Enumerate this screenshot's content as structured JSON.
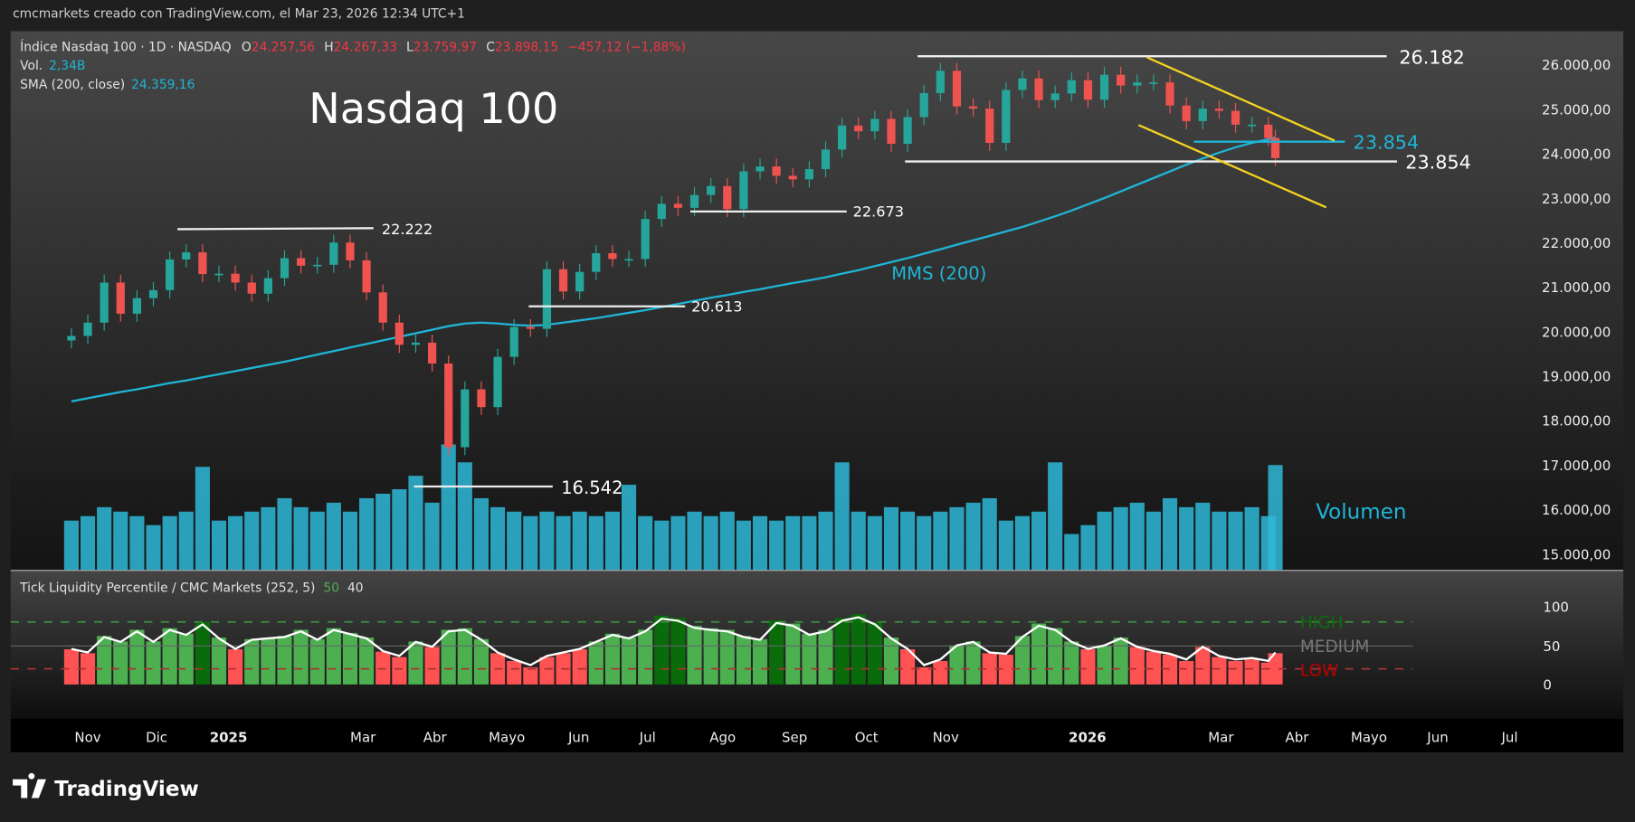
{
  "attribution": "cmcmarkets creado con TradingView.com, el Mar 23, 2026 12:34 UTC+1",
  "legend": {
    "symbol": "Índice Nasdaq 100 · 1D · NASDAQ",
    "o_label": "O",
    "o": "24.257,56",
    "h_label": "H",
    "h": "24.267,33",
    "l_label": "L",
    "l": "23.759,97",
    "c_label": "C",
    "c": "23.898,15",
    "change": "−457,12 (−1,88%)",
    "vol_label": "Vol.",
    "vol": "2,34B",
    "sma_label": "SMA (200, close)",
    "sma": "24.359,16"
  },
  "title_overlay": "Nasdaq 100",
  "annotations": {
    "mms": "MMS (200)",
    "volumen": "Volumen",
    "levels": [
      "26.182",
      "23.854",
      "23.854",
      "22.673",
      "22.222",
      "20.613",
      "16.542"
    ]
  },
  "indicator": {
    "title": "Tick Liquidity Percentile / CMC Markets (252, 5)",
    "v1": "50",
    "v2": "40",
    "high": "HIGH",
    "medium": "MEDIUM",
    "low": "LOW",
    "ticks": [
      "100",
      "50",
      "0"
    ]
  },
  "logo": "TradingView",
  "colors": {
    "up": "#26a69a",
    "down": "#ef5350",
    "sma": "#1fb5d6",
    "volume": "#2fb8d8",
    "trend": "#f5d321",
    "high": "#4caf50",
    "low": "#ff5252"
  },
  "chart_data": {
    "type": "candlestick",
    "price_axis_ticks": [
      "26.000,00",
      "25.000,00",
      "24.000,00",
      "23.000,00",
      "22.000,00",
      "21.000,00",
      "20.000,00",
      "19.000,00",
      "18.000,00",
      "17.000,00",
      "16.000,00",
      "15.000,00"
    ],
    "ylim": [
      15000,
      26500
    ],
    "time_ticks": [
      "Nov",
      "Dic",
      "2025",
      "Mar",
      "Abr",
      "Mayo",
      "Jun",
      "Jul",
      "Ago",
      "Sep",
      "Oct",
      "Nov",
      "2026",
      "Mar",
      "Abr",
      "Mayo",
      "Jun",
      "Jul"
    ],
    "dates": [
      "2024-10-25",
      "2024-11-01",
      "2024-11-08",
      "2024-11-15",
      "2024-11-22",
      "2024-11-29",
      "2024-12-06",
      "2024-12-13",
      "2024-12-20",
      "2024-12-27",
      "2025-01-03",
      "2025-01-10",
      "2025-01-17",
      "2025-01-24",
      "2025-01-31",
      "2025-02-07",
      "2025-02-14",
      "2025-02-21",
      "2025-02-28",
      "2025-03-07",
      "2025-03-14",
      "2025-03-21",
      "2025-03-28",
      "2025-04-04",
      "2025-04-11",
      "2025-04-18",
      "2025-04-25",
      "2025-05-02",
      "2025-05-09",
      "2025-05-16",
      "2025-05-23",
      "2025-05-30",
      "2025-06-06",
      "2025-06-13",
      "2025-06-20",
      "2025-06-27",
      "2025-07-04",
      "2025-07-11",
      "2025-07-18",
      "2025-07-25",
      "2025-08-01",
      "2025-08-08",
      "2025-08-15",
      "2025-08-22",
      "2025-08-29",
      "2025-09-05",
      "2025-09-12",
      "2025-09-19",
      "2025-09-26",
      "2025-10-03",
      "2025-10-10",
      "2025-10-17",
      "2025-10-24",
      "2025-10-31",
      "2025-11-07",
      "2025-11-14",
      "2025-11-21",
      "2025-11-28",
      "2025-12-05",
      "2025-12-12",
      "2025-12-19",
      "2025-12-26",
      "2026-01-02",
      "2026-01-09",
      "2026-01-16",
      "2026-01-23",
      "2026-01-30",
      "2026-02-06",
      "2026-02-13",
      "2026-02-20",
      "2026-02-27",
      "2026-03-06",
      "2026-03-13",
      "2026-03-20",
      "2026-03-23"
    ],
    "close": [
      19900,
      20200,
      21100,
      20400,
      20750,
      20930,
      21620,
      21780,
      21290,
      21300,
      21100,
      20850,
      21200,
      21650,
      21480,
      21500,
      22000,
      21600,
      20880,
      20200,
      19700,
      19750,
      19280,
      17400,
      18700,
      18300,
      19430,
      20100,
      20060,
      21400,
      20900,
      21340,
      21760,
      21630,
      21630,
      22530,
      22870,
      22780,
      23070,
      23270,
      22750,
      23600,
      23710,
      23500,
      23420,
      23650,
      24090,
      24630,
      24500,
      24780,
      24220,
      24820,
      25360,
      25860,
      25060,
      25010,
      24240,
      25430,
      25690,
      25200,
      25350,
      25650,
      25210,
      25770,
      25530,
      25600,
      25600,
      25080,
      24730,
      25010,
      24960,
      24650,
      24650,
      24350,
      23898
    ],
    "sma200": [
      18430,
      18500,
      18570,
      18640,
      18700,
      18770,
      18840,
      18900,
      18970,
      19040,
      19110,
      19180,
      19250,
      19320,
      19400,
      19480,
      19560,
      19640,
      19720,
      19800,
      19880,
      19960,
      20040,
      20120,
      20180,
      20200,
      20180,
      20150,
      20130,
      20150,
      20200,
      20250,
      20300,
      20360,
      20420,
      20480,
      20550,
      20620,
      20690,
      20760,
      20820,
      20890,
      20950,
      21020,
      21090,
      21150,
      21220,
      21300,
      21380,
      21470,
      21560,
      21650,
      21750,
      21850,
      21950,
      22050,
      22150,
      22250,
      22350,
      22470,
      22590,
      22720,
      22860,
      23000,
      23150,
      23300,
      23450,
      23600,
      23750,
      23890,
      24020,
      24140,
      24240,
      24320,
      24359
    ],
    "volume": [
      1.1,
      1.2,
      1.4,
      1.3,
      1.2,
      1.0,
      1.2,
      1.3,
      2.3,
      1.1,
      1.2,
      1.3,
      1.4,
      1.6,
      1.4,
      1.3,
      1.5,
      1.3,
      1.6,
      1.7,
      1.8,
      2.1,
      1.5,
      2.8,
      2.4,
      1.6,
      1.4,
      1.3,
      1.2,
      1.3,
      1.2,
      1.3,
      1.2,
      1.3,
      1.9,
      1.2,
      1.1,
      1.2,
      1.3,
      1.2,
      1.3,
      1.1,
      1.2,
      1.1,
      1.2,
      1.2,
      1.3,
      2.4,
      1.3,
      1.2,
      1.4,
      1.3,
      1.2,
      1.3,
      1.4,
      1.5,
      1.6,
      1.1,
      1.2,
      1.3,
      2.4,
      0.8,
      1.0,
      1.3,
      1.4,
      1.5,
      1.3,
      1.6,
      1.4,
      1.5,
      1.3,
      1.3,
      1.4,
      1.2,
      2.34
    ],
    "liquidity_percentile": [
      45,
      40,
      62,
      55,
      70,
      55,
      72,
      65,
      80,
      60,
      45,
      58,
      60,
      62,
      70,
      58,
      72,
      66,
      60,
      42,
      35,
      55,
      48,
      70,
      72,
      58,
      40,
      30,
      22,
      35,
      40,
      45,
      55,
      65,
      60,
      70,
      88,
      85,
      75,
      72,
      70,
      62,
      58,
      82,
      78,
      65,
      70,
      85,
      90,
      80,
      60,
      45,
      22,
      30,
      50,
      55,
      40,
      38,
      62,
      78,
      72,
      55,
      45,
      50,
      60,
      48,
      42,
      38,
      30,
      48,
      35,
      30,
      32,
      28,
      40
    ]
  }
}
